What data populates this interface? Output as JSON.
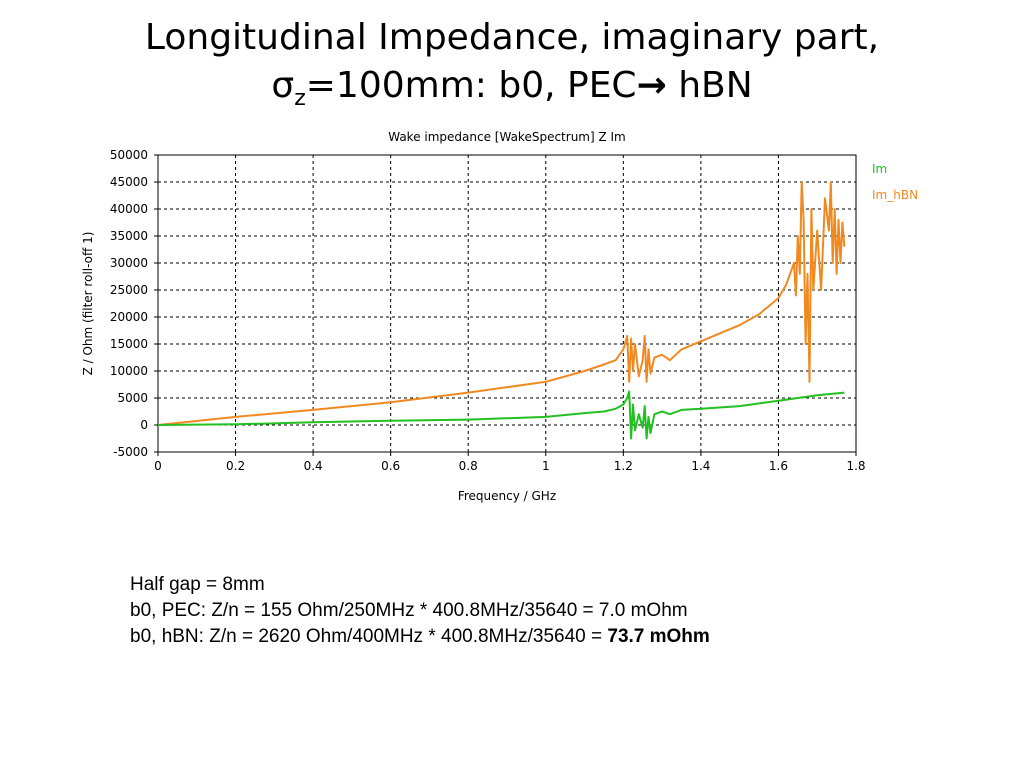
{
  "slide": {
    "title_line1": "Longitudinal Impedance, imaginary part,",
    "title_sigma": "σ",
    "title_sub": "z",
    "title_rest": "=100mm: b0, PEC",
    "title_arrow": "→",
    "title_end": " hBN"
  },
  "notes": {
    "line1": "Half gap = 8mm",
    "line2": "b0, PEC: Z/n = 155 Ohm/250MHz * 400.8MHz/35640 = 7.0 mOhm",
    "line3_prefix": "b0, hBN: Z/n = 2620 Ohm/400MHz * 400.8MHz/35640 = ",
    "line3_bold": "73.7 mOhm"
  },
  "chart_data": {
    "type": "line",
    "title": "Wake impedance [WakeSpectrum] Z Im",
    "xlabel": "Frequency / GHz",
    "ylabel": "Z / Ohm (filter roll-off 1)",
    "xlim": [
      0,
      1.8
    ],
    "ylim": [
      -5000,
      50000
    ],
    "xticks": [
      0,
      0.2,
      0.4,
      0.6,
      0.8,
      1,
      1.2,
      1.4,
      1.6,
      1.8
    ],
    "xtick_labels": [
      "0",
      "0.2",
      "0.4",
      "0.6",
      "0.8",
      "1",
      "1.2",
      "1.4",
      "1.6",
      "1.8"
    ],
    "yticks": [
      -5000,
      0,
      5000,
      10000,
      15000,
      20000,
      25000,
      30000,
      35000,
      40000,
      45000,
      50000
    ],
    "ytick_labels": [
      "-5000",
      "0",
      "5000",
      "10000",
      "15000",
      "20000",
      "25000",
      "30000",
      "35000",
      "40000",
      "45000",
      "50000"
    ],
    "grid": true,
    "legend_position": "right",
    "series": [
      {
        "name": "Im",
        "color": "#22c020",
        "x": [
          0,
          0.2,
          0.3,
          0.4,
          0.6,
          0.8,
          1.0,
          1.1,
          1.15,
          1.18,
          1.2,
          1.21,
          1.215,
          1.22,
          1.225,
          1.23,
          1.24,
          1.25,
          1.255,
          1.26,
          1.265,
          1.27,
          1.28,
          1.3,
          1.32,
          1.35,
          1.4,
          1.5,
          1.6,
          1.7,
          1.77
        ],
        "y": [
          0,
          150,
          300,
          500,
          800,
          1000,
          1500,
          2200,
          2500,
          3000,
          3800,
          5000,
          6200,
          -2500,
          3800,
          -1000,
          2000,
          -500,
          3500,
          -2500,
          1500,
          -1500,
          2000,
          2500,
          2000,
          2800,
          3000,
          3500,
          4500,
          5500,
          6000
        ]
      },
      {
        "name": "Im_hBN",
        "color": "#f08a20",
        "x": [
          0,
          0.2,
          0.4,
          0.6,
          0.8,
          1.0,
          1.1,
          1.15,
          1.18,
          1.2,
          1.21,
          1.215,
          1.22,
          1.225,
          1.23,
          1.24,
          1.25,
          1.255,
          1.26,
          1.265,
          1.27,
          1.28,
          1.3,
          1.32,
          1.35,
          1.4,
          1.5,
          1.55,
          1.6,
          1.62,
          1.63,
          1.64,
          1.645,
          1.65,
          1.655,
          1.66,
          1.665,
          1.67,
          1.675,
          1.68,
          1.685,
          1.69,
          1.7,
          1.71,
          1.72,
          1.73,
          1.735,
          1.74,
          1.745,
          1.75,
          1.755,
          1.76,
          1.765,
          1.77
        ],
        "y": [
          0,
          1500,
          2800,
          4200,
          6000,
          8000,
          10000,
          11200,
          12000,
          14000,
          16500,
          8000,
          16000,
          10000,
          15000,
          9000,
          12000,
          16500,
          8000,
          14000,
          9500,
          12500,
          13000,
          12000,
          14000,
          15500,
          18500,
          20500,
          23500,
          26000,
          28000,
          30000,
          24000,
          35000,
          28000,
          45000,
          38000,
          15000,
          28000,
          8000,
          40000,
          25000,
          36000,
          25000,
          42000,
          36000,
          45000,
          30000,
          40000,
          28000,
          38000,
          30000,
          37500,
          33000
        ]
      }
    ]
  }
}
